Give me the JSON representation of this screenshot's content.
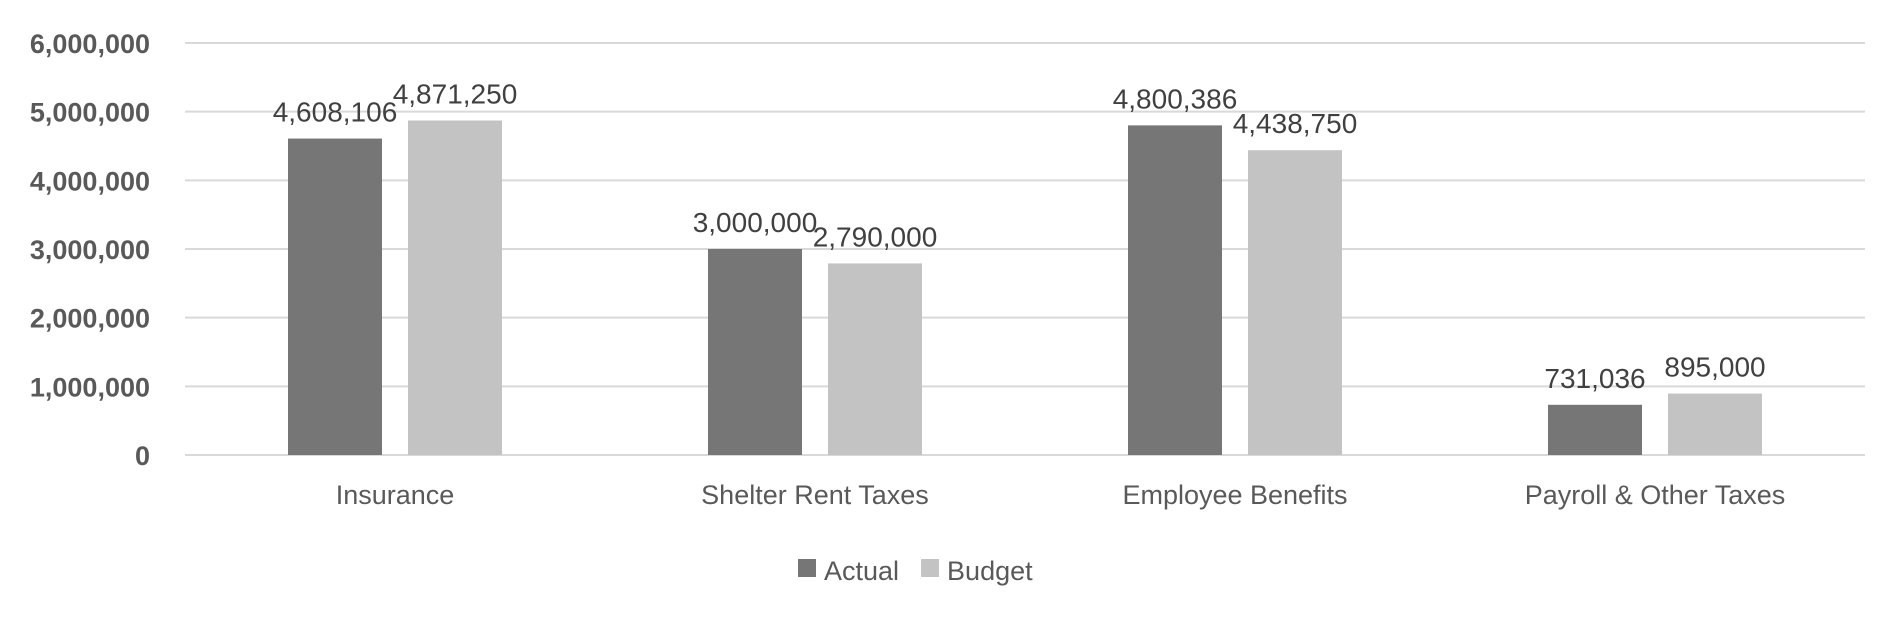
{
  "chart_data": {
    "type": "bar",
    "title": "",
    "xlabel": "",
    "ylabel": "",
    "categories": [
      "Insurance",
      "Shelter Rent Taxes",
      "Employee Benefits",
      "Payroll & Other Taxes"
    ],
    "series": [
      {
        "name": "Actual",
        "color": "#767676",
        "values": [
          4608106,
          3000000,
          4800386,
          731036
        ],
        "labels": [
          "4,608,106",
          "3,000,000",
          "4,800,386",
          "731,036"
        ]
      },
      {
        "name": "Budget",
        "color": "#c3c3c3",
        "values": [
          4871250,
          2790000,
          4438750,
          895000
        ],
        "labels": [
          "4,871,250",
          "2,790,000",
          "4,438,750",
          "895,000"
        ]
      }
    ],
    "ylim": [
      0,
      6000000
    ],
    "yticks": [
      0,
      1000000,
      2000000,
      3000000,
      4000000,
      5000000,
      6000000
    ],
    "ytick_labels": [
      "0",
      "1,000,000",
      "2,000,000",
      "3,000,000",
      "4,000,000",
      "5,000,000",
      "6,000,000"
    ],
    "grid": true,
    "legend_position": "bottom",
    "colors": {
      "gridline": "#d9d9d9",
      "axis_text": "#595959",
      "label_text": "#404040"
    }
  }
}
